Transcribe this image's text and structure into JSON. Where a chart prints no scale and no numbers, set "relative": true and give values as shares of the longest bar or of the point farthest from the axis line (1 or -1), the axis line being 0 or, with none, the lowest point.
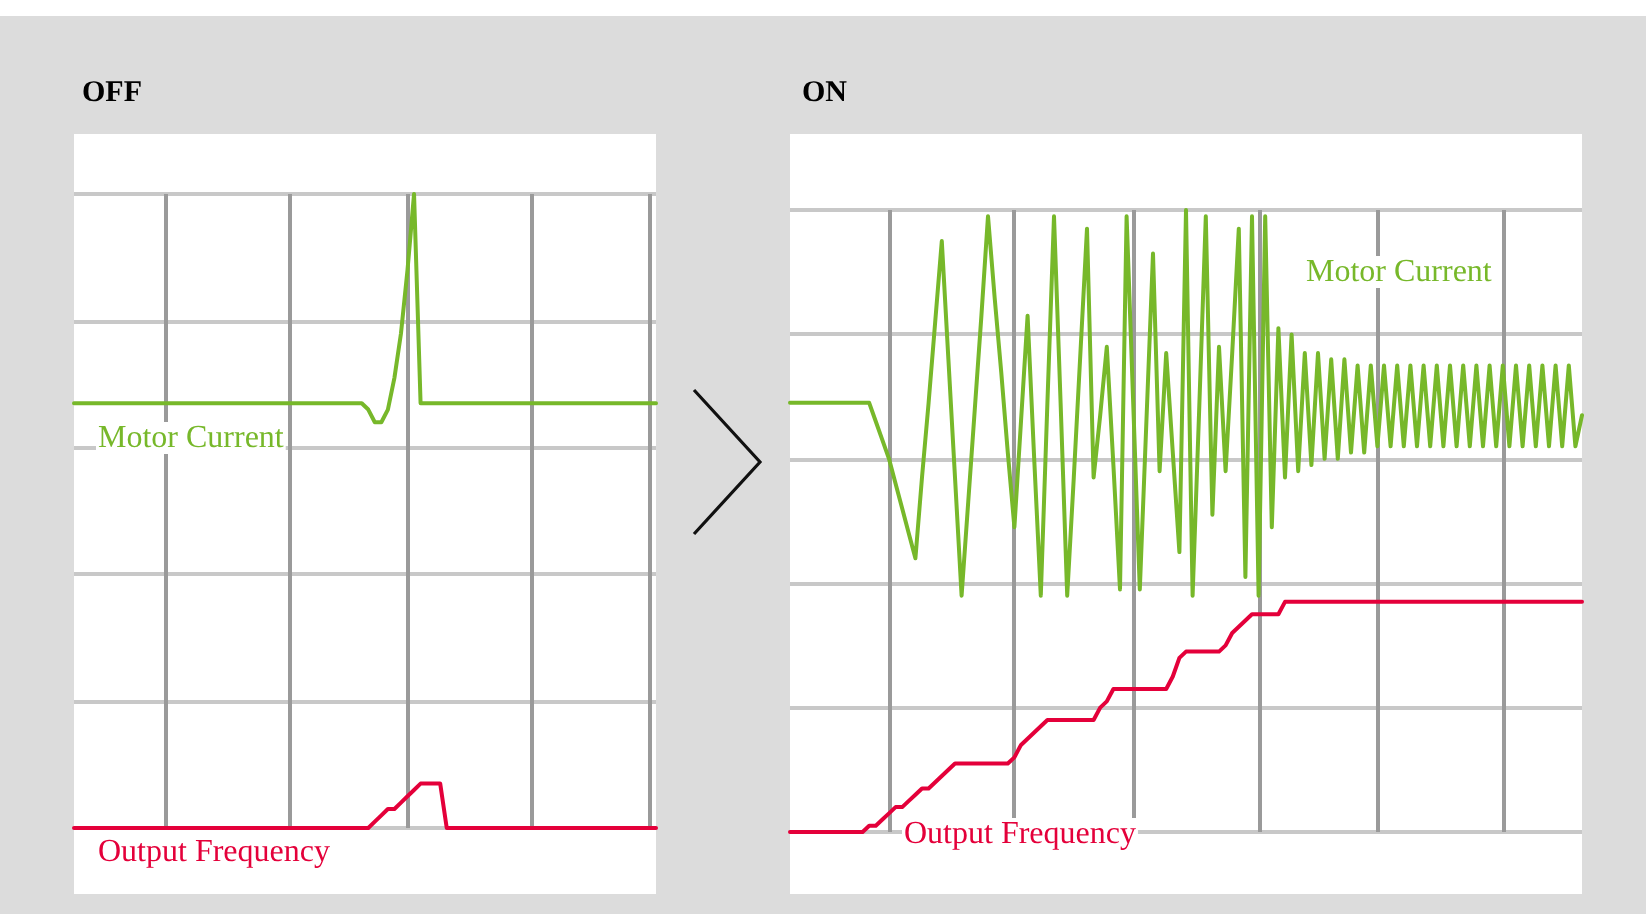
{
  "chart_data": [
    {
      "type": "line",
      "title": "OFF",
      "relative": true,
      "grid": true,
      "categories": [
        null,
        null,
        null,
        null,
        null,
        null,
        null,
        null,
        null,
        null,
        null,
        null,
        null,
        null,
        null,
        null,
        null,
        null,
        null,
        null,
        null,
        null,
        null,
        null,
        null,
        null,
        null,
        null,
        null,
        null,
        null,
        null,
        null,
        null,
        null,
        null,
        null,
        null,
        null,
        null,
        null,
        null,
        null,
        null,
        null,
        null,
        null,
        null,
        null,
        null,
        null,
        null,
        null,
        null,
        null,
        null,
        null,
        null,
        null,
        null,
        null,
        null,
        null,
        null,
        null,
        null,
        null,
        null,
        null,
        null,
        null,
        null,
        null,
        null,
        null,
        null,
        null,
        null,
        null,
        null,
        null,
        null,
        null,
        null,
        null,
        null,
        null,
        null,
        null,
        null
      ],
      "series": [
        {
          "name": "Motor Current",
          "color": "#77b82a",
          "values": [
            0.67,
            0.67,
            0.67,
            0.67,
            0.67,
            0.67,
            0.67,
            0.67,
            0.67,
            0.67,
            0.67,
            0.67,
            0.67,
            0.67,
            0.67,
            0.67,
            0.67,
            0.67,
            0.67,
            0.67,
            0.67,
            0.67,
            0.67,
            0.67,
            0.67,
            0.67,
            0.67,
            0.67,
            0.67,
            0.67,
            0.67,
            0.67,
            0.67,
            0.67,
            0.67,
            0.67,
            0.67,
            0.67,
            0.67,
            0.67,
            0.67,
            0.67,
            0.67,
            0.67,
            0.67,
            0.66,
            0.64,
            0.64,
            0.66,
            0.71,
            0.78,
            0.88,
            1,
            0.67,
            0.67,
            0.67,
            0.67,
            0.67,
            0.67,
            0.67,
            0.67,
            0.67,
            0.67,
            0.67,
            0.67,
            0.67,
            0.67,
            0.67,
            0.67,
            0.67,
            0.67,
            0.67,
            0.67,
            0.67,
            0.67,
            0.67,
            0.67,
            0.67,
            0.67,
            0.67,
            0.67,
            0.67,
            0.67,
            0.67,
            0.67,
            0.67,
            0.67,
            0.67,
            0.67,
            0.67
          ]
        },
        {
          "name": "Output Frequency",
          "color": "#e4003a",
          "values": [
            0,
            0,
            0,
            0,
            0,
            0,
            0,
            0,
            0,
            0,
            0,
            0,
            0,
            0,
            0,
            0,
            0,
            0,
            0,
            0,
            0,
            0,
            0,
            0,
            0,
            0,
            0,
            0,
            0,
            0,
            0,
            0,
            0,
            0,
            0,
            0,
            0,
            0,
            0,
            0,
            0,
            0,
            0,
            0,
            0,
            0,
            0.01,
            0.02,
            0.03,
            0.03,
            0.04,
            0.05,
            0.06,
            0.07,
            0.07,
            0.07,
            0.07,
            0,
            0,
            0,
            0,
            0,
            0,
            0,
            0,
            0,
            0,
            0,
            0,
            0,
            0,
            0,
            0,
            0,
            0,
            0,
            0,
            0,
            0,
            0,
            0,
            0,
            0,
            0,
            0,
            0,
            0,
            0,
            0,
            0
          ]
        }
      ]
    },
    {
      "type": "line",
      "title": "ON",
      "relative": true,
      "grid": true,
      "categories": [
        null,
        null,
        null,
        null,
        null,
        null,
        null,
        null,
        null,
        null,
        null,
        null,
        null,
        null,
        null,
        null,
        null,
        null,
        null,
        null,
        null,
        null,
        null,
        null,
        null,
        null,
        null,
        null,
        null,
        null,
        null,
        null,
        null,
        null,
        null,
        null,
        null,
        null,
        null,
        null,
        null,
        null,
        null,
        null,
        null,
        null,
        null,
        null,
        null,
        null,
        null,
        null,
        null,
        null,
        null,
        null,
        null,
        null,
        null,
        null,
        null,
        null,
        null,
        null,
        null,
        null,
        null,
        null,
        null,
        null,
        null,
        null,
        null,
        null,
        null,
        null,
        null,
        null,
        null,
        null,
        null,
        null,
        null,
        null,
        null,
        null,
        null,
        null,
        null,
        null,
        null,
        null,
        null,
        null,
        null,
        null,
        null,
        null,
        null,
        null,
        null,
        null,
        null,
        null,
        null,
        null,
        null,
        null,
        null,
        null,
        null,
        null,
        null,
        null,
        null,
        null,
        null,
        null,
        null,
        null,
        null
      ],
      "series": [
        {
          "name": "Motor Current",
          "color": "#77b82a",
          "values": [
            0.69,
            0.69,
            0.69,
            0.69,
            0.69,
            0.69,
            0.69,
            0.69,
            0.69,
            0.69,
            0.69,
            0.69,
            0.69,
            0.66,
            0.63,
            0.6,
            0.56,
            0.52,
            0.48,
            0.44,
            0.57,
            0.69,
            0.82,
            0.95,
            0.76,
            0.57,
            0.38,
            0.53,
            0.68,
            0.83,
            0.99,
            0.86,
            0.74,
            0.61,
            0.49,
            0.66,
            0.83,
            0.6,
            0.38,
            0.69,
            0.99,
            0.69,
            0.38,
            0.57,
            0.77,
            0.97,
            0.57,
            0.67,
            0.78,
            0.59,
            0.39,
            0.99,
            0.69,
            0.39,
            0.66,
            0.93,
            0.58,
            0.77,
            0.61,
            0.45,
            1,
            0.38,
            0.68,
            0.99,
            0.51,
            0.78,
            0.58,
            0.77,
            0.97,
            0.41,
            0.99,
            0.38,
            0.99,
            0.49,
            0.81,
            0.57,
            0.8,
            0.58,
            0.77,
            0.59,
            0.77,
            0.6,
            0.76,
            0.6,
            0.76,
            0.61,
            0.75,
            0.61,
            0.75,
            0.62,
            0.75,
            0.62,
            0.75,
            0.62,
            0.75,
            0.62,
            0.75,
            0.62,
            0.75,
            0.62,
            0.75,
            0.62,
            0.75,
            0.62,
            0.75,
            0.62,
            0.75,
            0.62,
            0.75,
            0.62,
            0.75,
            0.62,
            0.75,
            0.62,
            0.75,
            0.62,
            0.75,
            0.62,
            0.75,
            0.62,
            0.67
          ]
        },
        {
          "name": "Output Frequency",
          "color": "#e4003a",
          "values": [
            0,
            0,
            0,
            0,
            0,
            0,
            0,
            0,
            0,
            0,
            0,
            0,
            0.01,
            0.01,
            0.02,
            0.03,
            0.04,
            0.04,
            0.05,
            0.06,
            0.07,
            0.07,
            0.08,
            0.09,
            0.1,
            0.11,
            0.11,
            0.11,
            0.11,
            0.11,
            0.11,
            0.11,
            0.11,
            0.11,
            0.12,
            0.14,
            0.15,
            0.16,
            0.17,
            0.18,
            0.18,
            0.18,
            0.18,
            0.18,
            0.18,
            0.18,
            0.18,
            0.2,
            0.21,
            0.23,
            0.23,
            0.23,
            0.23,
            0.23,
            0.23,
            0.23,
            0.23,
            0.23,
            0.25,
            0.28,
            0.29,
            0.29,
            0.29,
            0.29,
            0.29,
            0.29,
            0.3,
            0.32,
            0.33,
            0.34,
            0.35,
            0.35,
            0.35,
            0.35,
            0.35,
            0.37,
            0.37,
            0.37,
            0.37,
            0.37,
            0.37,
            0.37,
            0.37,
            0.37,
            0.37,
            0.37,
            0.37,
            0.37,
            0.37,
            0.37,
            0.37,
            0.37,
            0.37,
            0.37,
            0.37,
            0.37,
            0.37,
            0.37,
            0.37,
            0.37,
            0.37,
            0.37,
            0.37,
            0.37,
            0.37,
            0.37,
            0.37,
            0.37,
            0.37,
            0.37,
            0.37,
            0.37,
            0.37,
            0.37,
            0.37,
            0.37,
            0.37,
            0.37,
            0.37,
            0.37,
            0.37
          ]
        }
      ]
    }
  ]
}
